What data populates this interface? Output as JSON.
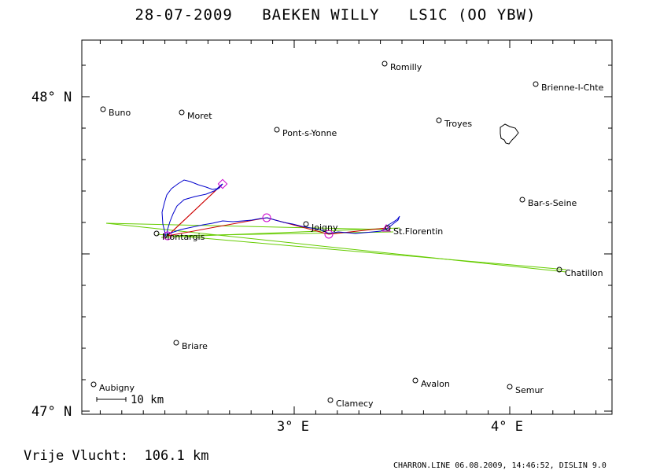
{
  "header": {
    "date": "28-07-2009",
    "pilot": "BAEKEN WILLY",
    "glider": "LS1C (OO YBW)"
  },
  "axes": {
    "lat_labels": [
      "48° N",
      "47° N"
    ],
    "lon_labels": [
      "3° E",
      "4° E"
    ]
  },
  "scale": {
    "label": "10 km"
  },
  "footer": {
    "distance_label": "Vrije Vlucht:",
    "distance_value": "106.1 km",
    "program": "CHARRON.LINE 06.08.2009, 14:46:52, DISLIN 9.0"
  },
  "cities": [
    {
      "name": "Romilly"
    },
    {
      "name": "Brienne-l-Chte"
    },
    {
      "name": "Buno"
    },
    {
      "name": "Moret"
    },
    {
      "name": "Pont-s-Yonne"
    },
    {
      "name": "Troyes"
    },
    {
      "name": "Bar-s-Seine"
    },
    {
      "name": "Montargis"
    },
    {
      "name": "Joigny"
    },
    {
      "name": "St.Florentin"
    },
    {
      "name": "Chatillon"
    },
    {
      "name": "Briare"
    },
    {
      "name": "Aubigny"
    },
    {
      "name": "Avalon"
    },
    {
      "name": "Semur"
    },
    {
      "name": "Clamecy"
    }
  ],
  "colors": {
    "track": "#0000cc",
    "task_line": "#cc0000",
    "sector_lines": "#66cc00",
    "markers": "#cc00cc"
  }
}
